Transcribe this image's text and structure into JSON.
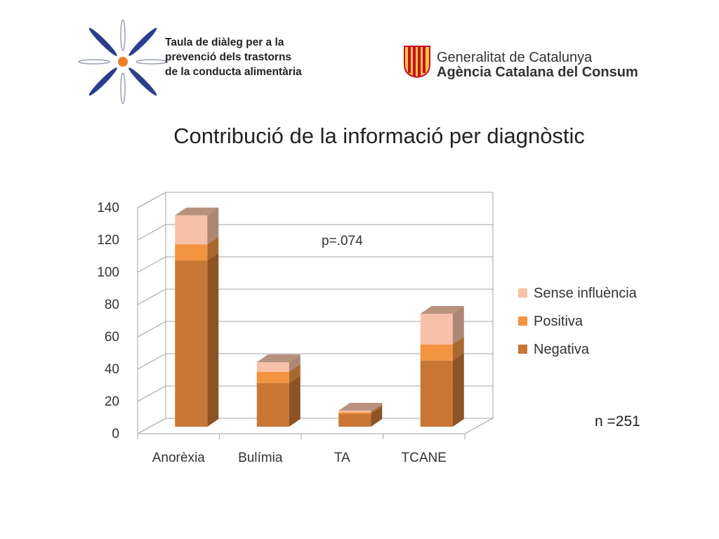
{
  "logos": {
    "left": {
      "lines": [
        "Taula de diàleg per a la",
        "prevenció dels trastorns",
        "de la conducta alimentària"
      ],
      "icon": "dot-burst-icon"
    },
    "right": {
      "line1": "Generalitat de Catalunya",
      "line2": "Agència Catalana del Consum",
      "icon": "senyera-icon"
    }
  },
  "colors": {
    "negativa": "#C97634",
    "positiva": "#F29440",
    "sense": "#F7C1A9",
    "gray": "#A6A6A6"
  },
  "chart_data": {
    "type": "bar",
    "stacked": true,
    "title": "Contribució de la informació per diagnòstic",
    "categories": [
      "Anorèxia",
      "Bulímia",
      "TA",
      "TCANE"
    ],
    "series": [
      {
        "name": "Negativa",
        "values": [
          103,
          27,
          8,
          41
        ]
      },
      {
        "name": "Positiva",
        "values": [
          10,
          7,
          1,
          10
        ]
      },
      {
        "name": "Sense influència",
        "values": [
          18,
          6,
          1,
          19
        ]
      }
    ],
    "ylim": [
      0,
      140
    ],
    "yticks": [
      "0",
      "20",
      "40",
      "60",
      "80",
      "100",
      "120",
      "140"
    ],
    "legend": "right",
    "grid": true,
    "annotations": {
      "pvalue": "p=.074",
      "n": "n =251"
    }
  }
}
